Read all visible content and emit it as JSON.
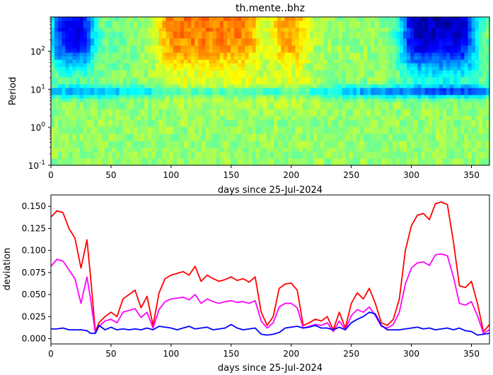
{
  "title": "th.mente..bhz",
  "chart_data": [
    {
      "type": "heatmap",
      "title": "th.mente..bhz",
      "xlabel": "days since 25-Jul-2024",
      "ylabel": "Period",
      "xlim": [
        0,
        365
      ],
      "ylim": [
        0.1,
        800
      ],
      "yscale": "log",
      "colormap": "jet",
      "xticks": [
        "0",
        "50",
        "100",
        "150",
        "200",
        "250",
        "300",
        "350"
      ],
      "yticks": [
        {
          "base": "10",
          "exp": "-1",
          "value": 0.1
        },
        {
          "base": "10",
          "exp": "0",
          "value": 1
        },
        {
          "base": "10",
          "exp": "1",
          "value": 10
        },
        {
          "base": "10",
          "exp": "2",
          "value": 100
        }
      ]
    },
    {
      "type": "line",
      "xlabel": "days since 25-Jul-2024",
      "ylabel": "deviation",
      "xlim": [
        0,
        365
      ],
      "ylim": [
        -0.006,
        0.163
      ],
      "xticks": [
        "0",
        "50",
        "100",
        "150",
        "200",
        "250",
        "300",
        "350"
      ],
      "yticks": [
        "0.000",
        "0.025",
        "0.050",
        "0.075",
        "0.100",
        "0.125",
        "0.150"
      ],
      "x": [
        0,
        5,
        10,
        15,
        20,
        25,
        30,
        33,
        37,
        40,
        45,
        50,
        55,
        60,
        65,
        70,
        75,
        80,
        85,
        90,
        95,
        100,
        105,
        110,
        115,
        120,
        125,
        130,
        135,
        140,
        145,
        150,
        155,
        160,
        165,
        170,
        175,
        180,
        185,
        190,
        195,
        200,
        205,
        210,
        215,
        220,
        225,
        230,
        235,
        240,
        245,
        250,
        255,
        260,
        265,
        270,
        275,
        280,
        285,
        290,
        295,
        300,
        305,
        310,
        315,
        320,
        325,
        330,
        335,
        340,
        345,
        350,
        355,
        360,
        365
      ],
      "series": [
        {
          "color": "#ff0000",
          "values": [
            0.138,
            0.145,
            0.143,
            0.125,
            0.114,
            0.08,
            0.112,
            0.07,
            0.008,
            0.018,
            0.025,
            0.03,
            0.025,
            0.045,
            0.05,
            0.055,
            0.035,
            0.048,
            0.015,
            0.052,
            0.068,
            0.072,
            0.074,
            0.076,
            0.072,
            0.082,
            0.065,
            0.072,
            0.068,
            0.065,
            0.067,
            0.07,
            0.066,
            0.068,
            0.064,
            0.07,
            0.03,
            0.015,
            0.025,
            0.057,
            0.062,
            0.063,
            0.055,
            0.015,
            0.018,
            0.022,
            0.02,
            0.025,
            0.01,
            0.03,
            0.012,
            0.04,
            0.052,
            0.045,
            0.057,
            0.04,
            0.018,
            0.015,
            0.022,
            0.045,
            0.1,
            0.128,
            0.14,
            0.142,
            0.135,
            0.153,
            0.155,
            0.152,
            0.11,
            0.06,
            0.058,
            0.065,
            0.04,
            0.008,
            0.016
          ]
        },
        {
          "color": "#ff00ff",
          "values": [
            0.082,
            0.09,
            0.088,
            0.078,
            0.068,
            0.04,
            0.07,
            0.045,
            0.006,
            0.014,
            0.02,
            0.022,
            0.018,
            0.03,
            0.032,
            0.034,
            0.024,
            0.03,
            0.012,
            0.033,
            0.042,
            0.045,
            0.046,
            0.047,
            0.044,
            0.05,
            0.04,
            0.045,
            0.042,
            0.04,
            0.042,
            0.043,
            0.041,
            0.042,
            0.04,
            0.043,
            0.02,
            0.012,
            0.018,
            0.036,
            0.04,
            0.04,
            0.035,
            0.012,
            0.014,
            0.016,
            0.015,
            0.018,
            0.008,
            0.02,
            0.01,
            0.026,
            0.033,
            0.03,
            0.036,
            0.026,
            0.014,
            0.012,
            0.016,
            0.03,
            0.062,
            0.08,
            0.086,
            0.087,
            0.083,
            0.095,
            0.096,
            0.094,
            0.07,
            0.04,
            0.038,
            0.042,
            0.026,
            0.006,
            0.01
          ]
        },
        {
          "color": "#0000ff",
          "values": [
            0.011,
            0.011,
            0.012,
            0.01,
            0.01,
            0.01,
            0.009,
            0.006,
            0.006,
            0.015,
            0.01,
            0.013,
            0.01,
            0.011,
            0.01,
            0.011,
            0.01,
            0.012,
            0.01,
            0.014,
            0.013,
            0.012,
            0.01,
            0.012,
            0.014,
            0.011,
            0.012,
            0.013,
            0.01,
            0.011,
            0.012,
            0.016,
            0.012,
            0.01,
            0.011,
            0.012,
            0.005,
            0.004,
            0.005,
            0.007,
            0.012,
            0.013,
            0.014,
            0.012,
            0.013,
            0.015,
            0.012,
            0.012,
            0.01,
            0.013,
            0.01,
            0.018,
            0.022,
            0.025,
            0.03,
            0.028,
            0.015,
            0.01,
            0.01,
            0.01,
            0.011,
            0.012,
            0.013,
            0.011,
            0.012,
            0.01,
            0.011,
            0.012,
            0.01,
            0.012,
            0.009,
            0.008,
            0.004,
            0.005,
            0.006
          ]
        }
      ]
    }
  ]
}
